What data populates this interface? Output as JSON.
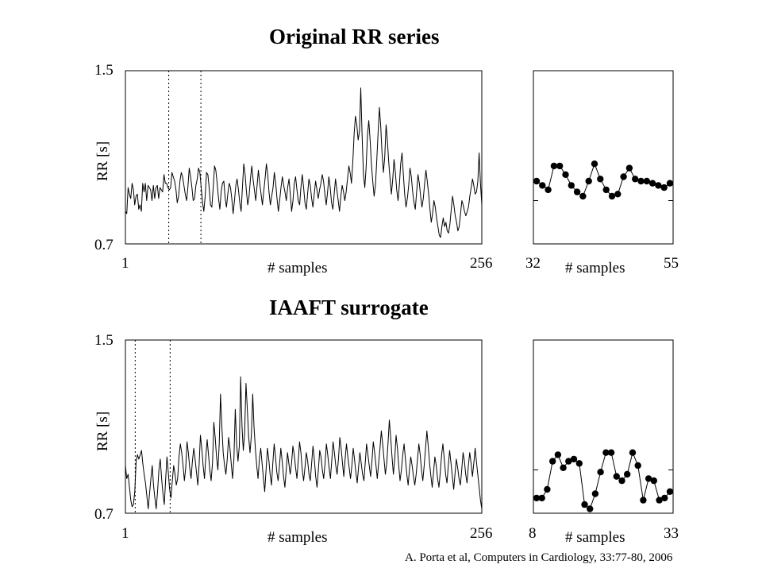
{
  "panel1": {
    "title": "Original RR series"
  },
  "panel2": {
    "title": "IAAFT surrogate"
  },
  "citation": "A. Porta et al, Computers in Cardiology, 33:77-80, 2006",
  "chart_data": [
    {
      "type": "line",
      "xlabel": "# samples",
      "ylabel": "RR [s]",
      "xlim": [
        1,
        256
      ],
      "ylim": [
        0.7,
        1.5
      ],
      "x_tick_labels": [
        "1",
        "256"
      ],
      "y_tick_labels": [
        "1.5",
        "0.7"
      ],
      "marked_window": [
        32,
        55
      ],
      "y": [
        0.85,
        0.84,
        0.96,
        0.93,
        0.91,
        0.98,
        0.95,
        0.88,
        0.92,
        0.93,
        0.86,
        0.88,
        0.85,
        0.98,
        0.94,
        0.98,
        0.9,
        0.97,
        0.96,
        0.95,
        0.9,
        0.97,
        0.91,
        0.96,
        0.97,
        0.91,
        0.96,
        0.95,
        0.94,
        1.02,
        0.98,
        0.98,
        0.96,
        0.95,
        0.96,
        1.03,
        1.01,
        0.99,
        0.95,
        0.89,
        0.92,
        0.99,
        1.03,
        1.01,
        0.97,
        0.93,
        0.9,
        0.96,
        1.05,
        1.01,
        0.96,
        0.9,
        0.91,
        0.97,
        1.0,
        1.05,
        1.03,
        0.96,
        0.89,
        0.85,
        0.92,
        1.03,
        1.02,
        0.96,
        0.88,
        0.87,
        0.96,
        1.06,
        1.04,
        0.98,
        0.91,
        0.86,
        0.94,
        0.98,
        0.99,
        0.91,
        0.87,
        0.93,
        0.98,
        0.96,
        0.91,
        0.84,
        0.9,
        0.97,
        1.0,
        0.95,
        0.89,
        0.85,
        0.96,
        1.07,
        1.02,
        0.94,
        0.88,
        0.92,
        1.0,
        1.06,
        1.0,
        0.95,
        0.9,
        0.97,
        1.04,
        0.98,
        0.93,
        0.88,
        0.94,
        1.0,
        1.07,
        1.02,
        0.94,
        0.88,
        0.92,
        0.96,
        1.03,
        0.98,
        0.91,
        0.85,
        0.9,
        0.96,
        1.01,
        0.97,
        0.94,
        0.9,
        0.96,
        1.0,
        0.93,
        0.85,
        0.9,
        0.98,
        1.01,
        0.95,
        0.9,
        0.88,
        0.96,
        1.02,
        0.96,
        0.89,
        0.86,
        0.93,
        1.0,
        0.97,
        0.91,
        0.87,
        0.93,
        0.99,
        0.95,
        0.91,
        0.95,
        0.98,
        1.02,
        0.99,
        0.93,
        0.88,
        0.94,
        1.01,
        0.96,
        0.89,
        0.86,
        0.93,
        1.0,
        0.95,
        0.9,
        0.85,
        0.92,
        0.97,
        0.94,
        0.9,
        0.94,
        1.0,
        1.06,
        1.03,
        0.98,
        1.08,
        1.21,
        1.29,
        1.25,
        1.18,
        1.22,
        1.42,
        1.2,
        1.02,
        0.96,
        1.05,
        1.2,
        1.27,
        1.18,
        1.07,
        0.99,
        0.92,
        0.97,
        1.08,
        1.21,
        1.33,
        1.24,
        1.12,
        1.03,
        1.1,
        1.25,
        1.18,
        1.08,
        1.0,
        0.93,
        1.0,
        1.09,
        1.03,
        0.95,
        0.9,
        0.97,
        1.07,
        1.12,
        1.02,
        0.93,
        0.87,
        0.91,
        0.97,
        1.05,
        1.01,
        0.94,
        0.89,
        0.86,
        0.94,
        1.02,
        0.98,
        0.92,
        0.87,
        0.91,
        0.98,
        1.04,
        0.99,
        0.93,
        0.86,
        0.8,
        0.84,
        0.9,
        0.87,
        0.82,
        0.78,
        0.74,
        0.73,
        0.78,
        0.82,
        0.78,
        0.8,
        0.76,
        0.75,
        0.79,
        0.86,
        0.92,
        0.88,
        0.83,
        0.8,
        0.76,
        0.78,
        0.84,
        0.9,
        0.88,
        0.85,
        0.83,
        0.85,
        0.87,
        0.92,
        0.96,
        1.0,
        0.97,
        0.93,
        0.94,
        0.99,
        1.12,
        0.98,
        0.88
      ]
    },
    {
      "type": "scatter",
      "xlabel": "# samples",
      "x_tick_labels": [
        "32",
        "55"
      ],
      "xlim": [
        32,
        55
      ],
      "ylim": [
        0.7,
        1.5
      ],
      "x": [
        32,
        33,
        34,
        35,
        36,
        37,
        38,
        39,
        40,
        41,
        42,
        43,
        44,
        45,
        46,
        47,
        48,
        49,
        50,
        51,
        52,
        53,
        54,
        55
      ],
      "y": [
        0.99,
        0.97,
        0.95,
        1.06,
        1.06,
        1.02,
        0.97,
        0.94,
        0.92,
        0.99,
        1.07,
        1.0,
        0.95,
        0.92,
        0.93,
        1.01,
        1.05,
        1.0,
        0.99,
        0.99,
        0.98,
        0.97,
        0.96,
        0.98
      ]
    },
    {
      "type": "line",
      "xlabel": "# samples",
      "ylabel": "RR [s]",
      "xlim": [
        1,
        256
      ],
      "ylim": [
        0.7,
        1.5
      ],
      "x_tick_labels": [
        "1",
        "256"
      ],
      "y_tick_labels": [
        "1.5",
        "0.7"
      ],
      "marked_window": [
        8,
        33
      ],
      "y": [
        0.92,
        0.86,
        0.88,
        0.82,
        0.76,
        0.73,
        0.74,
        0.8,
        0.94,
        0.97,
        0.95,
        0.97,
        0.99,
        0.93,
        0.88,
        0.84,
        0.78,
        0.72,
        0.79,
        0.86,
        0.92,
        0.83,
        0.77,
        0.72,
        0.8,
        0.9,
        0.95,
        0.86,
        0.79,
        0.74,
        0.85,
        0.96,
        0.89,
        0.81,
        0.77,
        0.85,
        0.92,
        0.88,
        0.83,
        0.86,
        0.96,
        1.02,
        0.98,
        0.92,
        0.85,
        0.91,
        1.03,
        0.98,
        0.91,
        0.86,
        0.94,
        1.0,
        0.95,
        0.89,
        0.83,
        0.92,
        1.06,
        1.0,
        0.92,
        0.86,
        0.96,
        1.04,
        0.97,
        0.9,
        0.85,
        0.93,
        1.12,
        1.05,
        0.96,
        0.9,
        1.02,
        1.25,
        1.1,
        0.98,
        0.92,
        0.88,
        0.95,
        1.05,
        1.0,
        0.93,
        0.86,
        0.95,
        1.18,
        1.02,
        0.94,
        1.01,
        1.33,
        1.1,
        0.99,
        1.07,
        1.3,
        1.18,
        1.05,
        0.98,
        1.06,
        1.25,
        1.1,
        1.0,
        0.92,
        0.86,
        0.95,
        1.0,
        0.93,
        0.86,
        0.8,
        0.9,
        1.0,
        0.95,
        0.88,
        0.83,
        0.93,
        1.02,
        0.96,
        0.89,
        0.85,
        0.92,
        1.0,
        0.94,
        0.87,
        0.82,
        0.9,
        0.98,
        0.93,
        0.88,
        0.93,
        1.01,
        0.97,
        0.91,
        0.86,
        0.94,
        1.03,
        0.98,
        0.9,
        0.85,
        0.91,
        0.98,
        0.94,
        0.88,
        0.85,
        0.93,
        1.01,
        0.95,
        0.87,
        0.82,
        0.9,
        0.99,
        0.96,
        0.9,
        0.86,
        0.93,
        1.02,
        0.97,
        0.91,
        0.86,
        0.94,
        1.03,
        0.98,
        0.92,
        0.88,
        0.95,
        1.05,
        1.0,
        0.93,
        0.87,
        0.95,
        1.02,
        0.96,
        0.91,
        0.86,
        0.92,
        1.0,
        0.95,
        0.89,
        0.84,
        0.91,
        0.98,
        0.93,
        0.88,
        0.85,
        0.93,
        1.02,
        0.97,
        0.92,
        0.87,
        0.94,
        1.03,
        0.98,
        0.92,
        0.86,
        0.93,
        1.0,
        1.08,
        1.02,
        0.95,
        0.88,
        0.93,
        1.02,
        1.13,
        1.05,
        0.96,
        0.88,
        0.95,
        1.06,
        1.0,
        0.92,
        0.85,
        0.9,
        0.97,
        1.02,
        0.95,
        0.88,
        0.83,
        0.9,
        0.96,
        0.92,
        0.87,
        0.83,
        0.88,
        0.95,
        1.02,
        0.97,
        0.9,
        0.85,
        0.92,
        1.0,
        1.08,
        1.01,
        0.93,
        0.87,
        0.82,
        0.89,
        0.96,
        0.92,
        0.86,
        0.82,
        0.89,
        0.97,
        1.02,
        0.95,
        0.88,
        0.84,
        0.92,
        0.99,
        0.93,
        0.87,
        0.81,
        0.88,
        0.95,
        0.91,
        0.86,
        0.83,
        0.9,
        0.98,
        0.94,
        0.88,
        0.84,
        0.92,
        0.98,
        0.93,
        0.87,
        0.93,
        1.0,
        0.94,
        0.88,
        0.82,
        0.76,
        0.72
      ]
    },
    {
      "type": "scatter",
      "xlabel": "# samples",
      "x_tick_labels": [
        "8",
        "33"
      ],
      "xlim": [
        8,
        33
      ],
      "ylim": [
        0.7,
        1.5
      ],
      "x": [
        8,
        9,
        10,
        11,
        12,
        13,
        14,
        15,
        16,
        17,
        18,
        19,
        20,
        21,
        22,
        23,
        24,
        25,
        26,
        27,
        28,
        29,
        30,
        31,
        32,
        33
      ],
      "y": [
        0.77,
        0.77,
        0.81,
        0.94,
        0.97,
        0.91,
        0.94,
        0.95,
        0.93,
        0.74,
        0.72,
        0.79,
        0.89,
        0.98,
        0.98,
        0.87,
        0.85,
        0.88,
        0.98,
        0.92,
        0.76,
        0.86,
        0.85,
        0.76,
        0.77,
        0.8
      ]
    }
  ]
}
